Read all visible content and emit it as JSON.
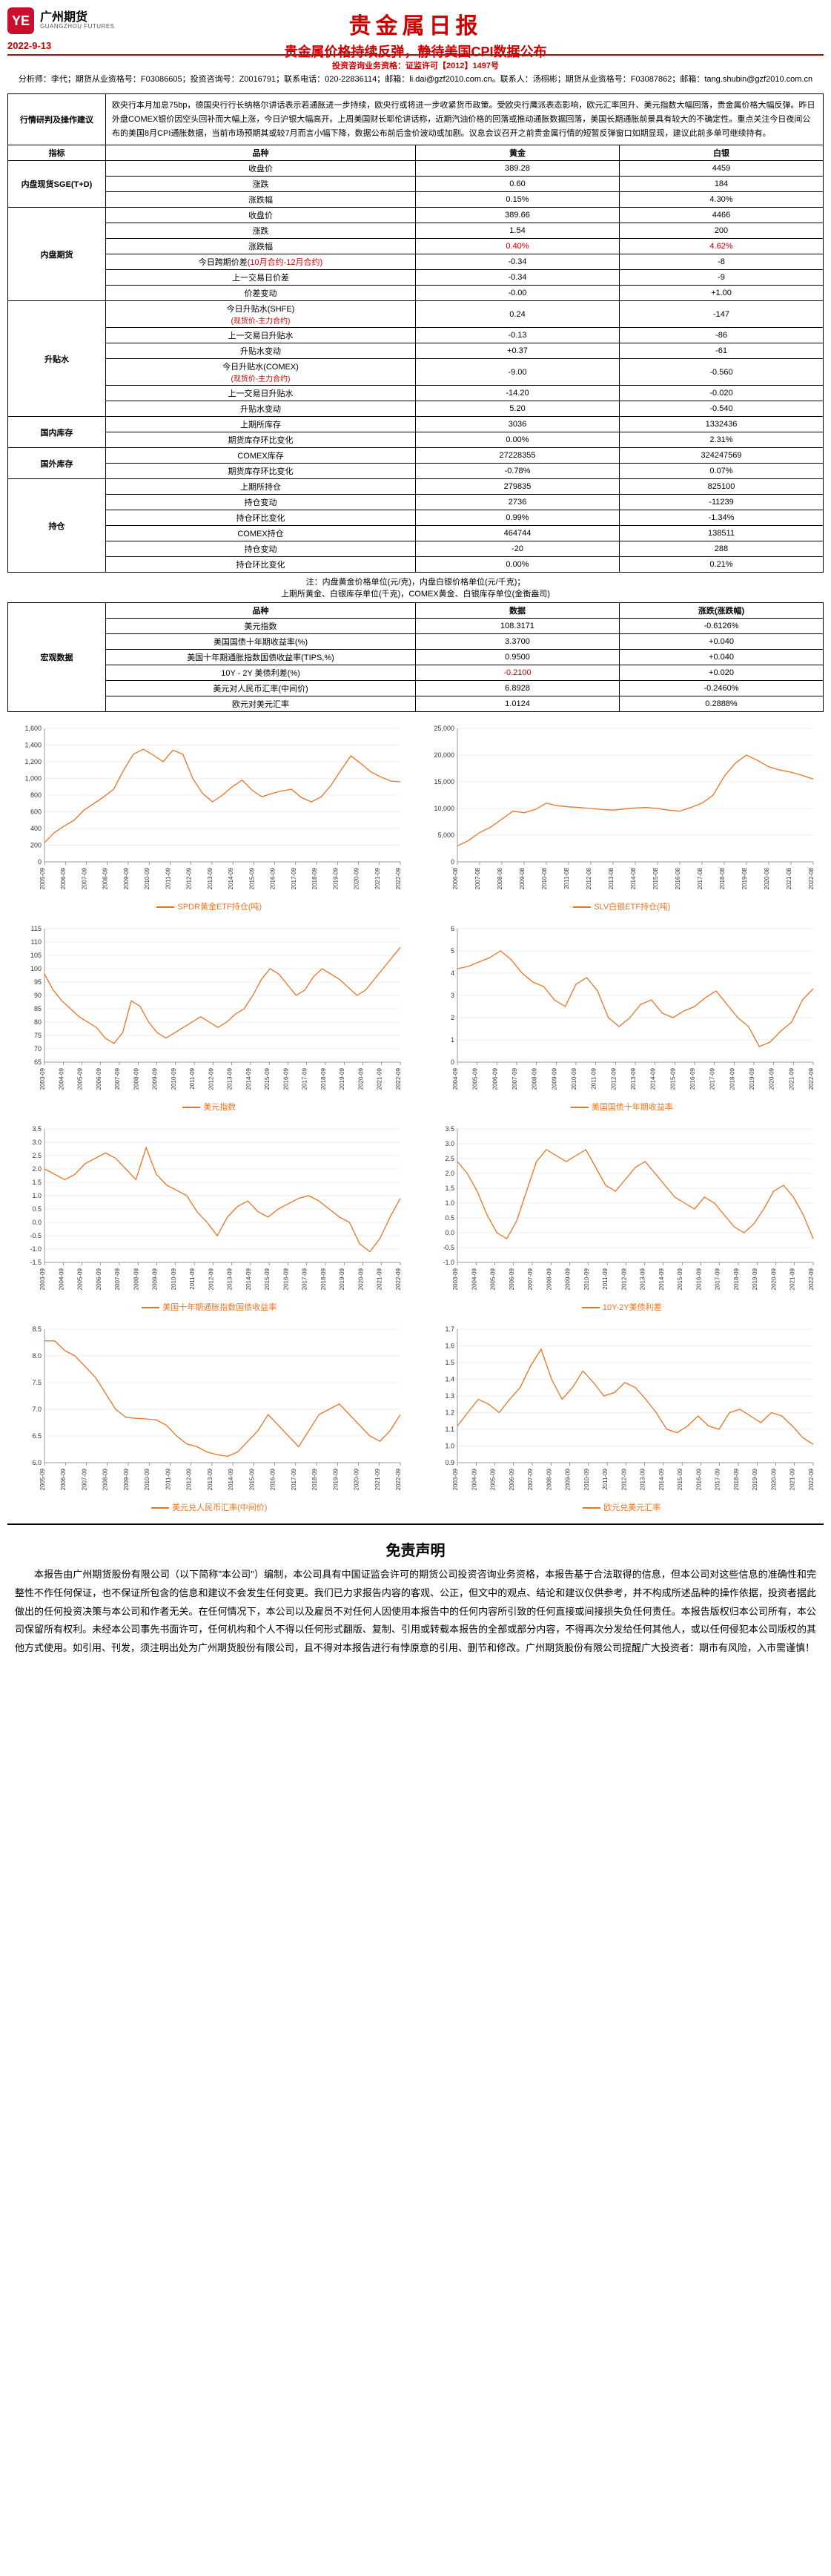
{
  "header": {
    "logo_cn": "广州期货",
    "logo_en": "GUANGZHOU FUTURES",
    "logo_badge": "YE",
    "date": "2022-9-13",
    "main_title": "贵金属日报",
    "sub_title": "贵金属价格持续反弹，静待美国CPI数据公布"
  },
  "meta": {
    "line1_label": "投资咨询业务资格：证监许可【2012】1497号",
    "line2": "分析师：李代；期货从业资格号：F03086605；投资咨询号：Z0016791；联系电话：020-22836114；邮箱：li.dai@gzf2010.com.cn。联系人：汤栩彬；期货从业资格号：F03087862；邮箱：tang.shubin@gzf2010.com.cn"
  },
  "analysis": {
    "section_label": "行情研判及操作建议",
    "text": "欧央行本月加息75bp，德国央行行长纳格尔讲话表示若通胀进一步持续，欧央行或将进一步收紧货币政策。受欧央行鹰派表态影响，欧元汇率回升、美元指数大幅回落，贵金属价格大幅反弹。昨日外盘COMEX银价因空头回补而大幅上涨，今日沪银大幅高开。上周美国财长耶伦讲话称，近期汽油价格的回落或推动通胀数据回落，美国长期通胀前景具有较大的不确定性。重点关注今日夜间公布的美国8月CPI通胀数据，当前市场预期其或较7月而言小幅下降，数据公布前后金价波动或加剧。议息会议召开之前贵金属行情的短暂反弹窗口如期显现，建议此前多单可继续持有。"
  },
  "table1": {
    "head": {
      "c1": "指标",
      "c2": "品种",
      "c3": "黄金",
      "c4": "白银"
    },
    "groups": [
      {
        "label": "内盘现货SGE(T+D)",
        "rows": [
          {
            "name": "收盘价",
            "gold": "389.28",
            "silver": "4459"
          },
          {
            "name": "涨跌",
            "gold": "0.60",
            "silver": "184"
          },
          {
            "name": "涨跌幅",
            "gold": "0.15%",
            "silver": "4.30%"
          }
        ]
      },
      {
        "label": "内盘期货",
        "rows": [
          {
            "name": "收盘价",
            "gold": "389.66",
            "silver": "4466"
          },
          {
            "name": "涨跌",
            "gold": "1.54",
            "silver": "200"
          },
          {
            "name": "涨跌幅",
            "gold": "0.40%",
            "silver": "4.62%",
            "red": true
          },
          {
            "name": "今日跨期价差(10月合约-12月合约)",
            "gold": "-0.34",
            "silver": "-8",
            "red_label": true
          },
          {
            "name": "上一交易日价差",
            "gold": "-0.34",
            "silver": "-9"
          },
          {
            "name": "价差变动",
            "gold": "-0.00",
            "silver": "+1.00"
          }
        ]
      },
      {
        "label": "升贴水",
        "rows": [
          {
            "name": "今日升贴水(SHFE)\n(现货价-主力合约)",
            "gold": "0.24",
            "silver": "-147",
            "red_sub": true
          },
          {
            "name": "上一交易日升贴水",
            "gold": "-0.13",
            "silver": "-86"
          },
          {
            "name": "升贴水变动",
            "gold": "+0.37",
            "silver": "-61"
          },
          {
            "name": "今日升贴水(COMEX)\n(现货价-主力合约)",
            "gold": "-9.00",
            "silver": "-0.560",
            "red_sub": true
          },
          {
            "name": "上一交易日升贴水",
            "gold": "-14.20",
            "silver": "-0.020"
          },
          {
            "name": "升贴水变动",
            "gold": "5.20",
            "silver": "-0.540"
          }
        ]
      },
      {
        "label": "国内库存",
        "rows": [
          {
            "name": "上期所库存",
            "gold": "3036",
            "silver": "1332436"
          },
          {
            "name": "期货库存环比变化",
            "gold": "0.00%",
            "silver": "2.31%"
          }
        ]
      },
      {
        "label": "国外库存",
        "rows": [
          {
            "name": "COMEX库存",
            "gold": "27228355",
            "silver": "324247569"
          },
          {
            "name": "期货库存环比变化",
            "gold": "-0.78%",
            "silver": "0.07%"
          }
        ]
      },
      {
        "label": "持仓",
        "rows": [
          {
            "name": "上期所持仓",
            "gold": "279835",
            "silver": "825100"
          },
          {
            "name": "持仓变动",
            "gold": "2736",
            "silver": "-11239"
          },
          {
            "name": "持仓环比变化",
            "gold": "0.99%",
            "silver": "-1.34%"
          },
          {
            "name": "COMEX持仓",
            "gold": "464744",
            "silver": "138511"
          },
          {
            "name": "持仓变动",
            "gold": "-20",
            "silver": "288"
          },
          {
            "name": "持仓环比变化",
            "gold": "0.00%",
            "silver": "0.21%"
          }
        ]
      }
    ],
    "note": "注：内盘黄金价格单位(元/克)，内盘白银价格单位(元/千克)；\n上期所黄金、白银库存单位(千克)，COMEX黄金、白银库存单位(金衡盎司)"
  },
  "table2": {
    "label": "宏观数据",
    "head": {
      "c1": "品种",
      "c2": "数据",
      "c3": "涨跌(涨跌幅)"
    },
    "rows": [
      {
        "name": "美元指数",
        "val": "108.3171",
        "chg": "-0.6126%"
      },
      {
        "name": "美国国债十年期收益率(%)",
        "val": "3.3700",
        "chg": "+0.040"
      },
      {
        "name": "美国十年期通胀指数国债收益率(TIPS,%)",
        "val": "0.9500",
        "chg": "+0.040"
      },
      {
        "name": "10Y - 2Y 美债利差(%)",
        "val": "-0.2100",
        "chg": "+0.020",
        "red_val": true
      },
      {
        "name": "美元对人民币汇率(中间价)",
        "val": "6.8928",
        "chg": "-0.2460%"
      },
      {
        "name": "欧元对美元汇率",
        "val": "1.0124",
        "chg": "0.2888%"
      }
    ]
  },
  "charts": [
    {
      "title": "SPDR黄金ETF持仓(吨)",
      "ylim": [
        0,
        1600
      ],
      "ytick": 200,
      "color": "#e97424",
      "x_start": "2005-09",
      "x_end": "2022-09",
      "xstep_years": 1,
      "data": [
        230,
        350,
        430,
        500,
        620,
        700,
        780,
        870,
        1100,
        1290,
        1350,
        1280,
        1200,
        1340,
        1290,
        1000,
        820,
        720,
        800,
        900,
        980,
        860,
        780,
        820,
        850,
        870,
        770,
        720,
        780,
        920,
        1100,
        1270,
        1180,
        1080,
        1020,
        970,
        960
      ]
    },
    {
      "title": "SLV白银ETF持仓(吨)",
      "ylim": [
        0,
        25000
      ],
      "ytick": 5000,
      "color": "#e97424",
      "x_start": "2006-08",
      "x_end": "2022-08",
      "xstep_years": 1,
      "data": [
        3000,
        4000,
        5500,
        6500,
        8000,
        9500,
        9200,
        9800,
        11000,
        10500,
        10300,
        10200,
        10000,
        9800,
        9700,
        9900,
        10100,
        10200,
        10000,
        9700,
        9500,
        10200,
        11000,
        12500,
        16000,
        18500,
        20000,
        19000,
        17800,
        17200,
        16800,
        16200,
        15500
      ]
    },
    {
      "title": "美元指数",
      "ylim": [
        65,
        115
      ],
      "ytick": 5,
      "color": "#e97424",
      "x_start": "2003-09",
      "x_end": "2022-09",
      "xstep_years": 1,
      "data": [
        98,
        92,
        88,
        85,
        82,
        80,
        78,
        74,
        72,
        76,
        88,
        86,
        80,
        76,
        74,
        76,
        78,
        80,
        82,
        80,
        78,
        80,
        83,
        85,
        90,
        96,
        100,
        98,
        94,
        90,
        92,
        97,
        100,
        98,
        96,
        93,
        90,
        92,
        96,
        100,
        104,
        108
      ]
    },
    {
      "title": "美国国债十年期收益率",
      "ylim": [
        0,
        6
      ],
      "ytick": 1,
      "color": "#e97424",
      "x_start": "2004-09",
      "x_end": "2022-09",
      "xstep_years": 1,
      "data": [
        4.2,
        4.3,
        4.5,
        4.7,
        5.0,
        4.6,
        4.0,
        3.6,
        3.4,
        2.8,
        2.5,
        3.5,
        3.8,
        3.2,
        2.0,
        1.6,
        2.0,
        2.6,
        2.8,
        2.2,
        2.0,
        2.3,
        2.5,
        2.9,
        3.2,
        2.6,
        2.0,
        1.6,
        0.7,
        0.9,
        1.4,
        1.8,
        2.8,
        3.3
      ]
    },
    {
      "title": "美国十年期通胀指数国债收益率",
      "ylim": [
        -1.5,
        3.5
      ],
      "ytick": 0.5,
      "color": "#e97424",
      "x_start": "2003-09",
      "x_end": "2022-09",
      "xstep_years": 1,
      "data": [
        2.0,
        1.8,
        1.6,
        1.8,
        2.2,
        2.4,
        2.6,
        2.4,
        2.0,
        1.6,
        2.8,
        1.8,
        1.4,
        1.2,
        1.0,
        0.4,
        0.0,
        -0.5,
        0.2,
        0.6,
        0.8,
        0.4,
        0.2,
        0.5,
        0.7,
        0.9,
        1.0,
        0.8,
        0.5,
        0.2,
        0.0,
        -0.8,
        -1.1,
        -0.6,
        0.2,
        0.9
      ]
    },
    {
      "title": "10Y-2Y美债利差",
      "ylim": [
        -1.0,
        3.5
      ],
      "ytick": 0.5,
      "color": "#e97424",
      "x_start": "2003-09",
      "x_end": "2022-09",
      "xstep_years": 1,
      "data": [
        2.4,
        2.0,
        1.4,
        0.6,
        0.0,
        -0.2,
        0.4,
        1.4,
        2.4,
        2.8,
        2.6,
        2.4,
        2.6,
        2.8,
        2.2,
        1.6,
        1.4,
        1.8,
        2.2,
        2.4,
        2.0,
        1.6,
        1.2,
        1.0,
        0.8,
        1.2,
        1.0,
        0.6,
        0.2,
        0.0,
        0.3,
        0.8,
        1.4,
        1.6,
        1.2,
        0.6,
        -0.2
      ]
    },
    {
      "title": "美元兑人民币汇率(中间价)",
      "ylim": [
        6.0,
        8.5
      ],
      "ytick": 0.5,
      "color": "#e97424",
      "x_start": "2005-09",
      "x_end": "2022-09",
      "xstep_years": 1,
      "data": [
        8.28,
        8.28,
        8.1,
        8.0,
        7.8,
        7.6,
        7.3,
        7.0,
        6.85,
        6.83,
        6.82,
        6.8,
        6.7,
        6.5,
        6.35,
        6.3,
        6.2,
        6.15,
        6.12,
        6.2,
        6.4,
        6.6,
        6.9,
        6.7,
        6.5,
        6.3,
        6.6,
        6.9,
        7.0,
        7.1,
        6.9,
        6.7,
        6.5,
        6.4,
        6.6,
        6.9
      ]
    },
    {
      "title": "欧元兑美元汇率",
      "ylim": [
        0.9,
        1.7
      ],
      "ytick": 0.1,
      "color": "#e97424",
      "x_start": "2003-09",
      "x_end": "2022-09",
      "xstep_years": 1,
      "data": [
        1.12,
        1.2,
        1.28,
        1.25,
        1.2,
        1.28,
        1.35,
        1.48,
        1.58,
        1.4,
        1.28,
        1.35,
        1.45,
        1.38,
        1.3,
        1.32,
        1.38,
        1.35,
        1.28,
        1.2,
        1.1,
        1.08,
        1.12,
        1.18,
        1.12,
        1.1,
        1.2,
        1.22,
        1.18,
        1.14,
        1.2,
        1.18,
        1.12,
        1.05,
        1.01
      ]
    }
  ],
  "disclaimer": {
    "title": "免责声明",
    "text": "本报告由广州期货股份有限公司（以下简称\"本公司\"）编制，本公司具有中国证监会许可的期货公司投资咨询业务资格，本报告基于合法取得的信息，但本公司对这些信息的准确性和完整性不作任何保证，也不保证所包含的信息和建议不会发生任何变更。我们已力求报告内容的客观、公正，但文中的观点、结论和建议仅供参考，并不构成所述品种的操作依据，投资者据此做出的任何投资决策与本公司和作者无关。在任何情况下，本公司以及雇员不对任何人因使用本报告中的任何内容所引致的任何直接或间接损失负任何责任。本报告版权归本公司所有，本公司保留所有权利。未经本公司事先书面许可，任何机构和个人不得以任何形式翻版、复制、引用或转载本报告的全部或部分内容，不得再次分发给任何其他人，或以任何侵犯本公司版权的其他方式使用。如引用、刊发，须注明出处为广州期货股份有限公司，且不得对本报告进行有悖原意的引用、删节和修改。广州期货股份有限公司提醒广大投资者：期市有风险，入市需谨慎！"
  }
}
